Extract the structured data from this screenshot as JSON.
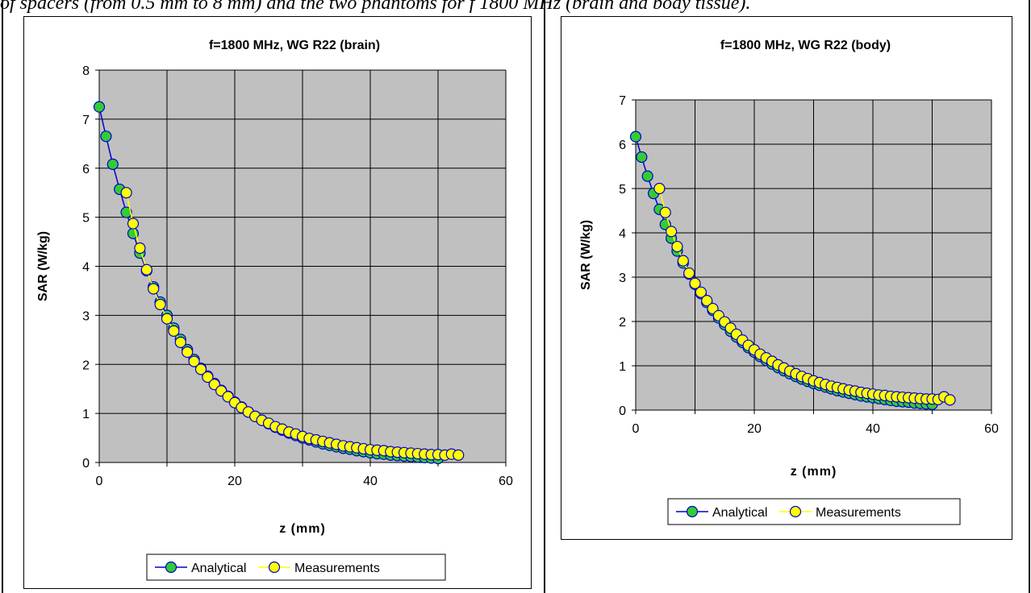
{
  "caption": "of spacers (from 0.5 mm to 8 mm) and the two phantoms for f 1800 MHz (brain and body tissue).",
  "chart_data": [
    {
      "type": "scatter",
      "title": "f=1800 MHz, WG R22 (brain)",
      "xlabel": "z (mm)",
      "ylabel": "SAR (W/kg)",
      "xlim": [
        0,
        60
      ],
      "ylim": [
        0,
        8
      ],
      "xticks": [
        0,
        20,
        40,
        60
      ],
      "yticks": [
        0,
        1,
        2,
        3,
        4,
        5,
        6,
        7,
        8
      ],
      "grid": true,
      "legend": "bottom",
      "plot_background": "#c0c0c0",
      "series": [
        {
          "name": "Analytical",
          "line_color": "#0000cc",
          "marker_color": "#33cc33",
          "x": [
            0,
            1,
            2,
            3,
            4,
            5,
            6,
            7,
            8,
            9,
            10,
            11,
            12,
            13,
            14,
            15,
            16,
            17,
            18,
            19,
            20,
            21,
            22,
            23,
            24,
            25,
            26,
            27,
            28,
            29,
            30,
            31,
            32,
            33,
            34,
            35,
            36,
            37,
            38,
            39,
            40,
            41,
            42,
            43,
            44,
            45,
            46,
            47,
            48,
            49,
            50
          ],
          "y": [
            7.25,
            6.65,
            6.08,
            5.57,
            5.1,
            4.67,
            4.27,
            3.91,
            3.58,
            3.27,
            3.0,
            2.74,
            2.51,
            2.3,
            2.1,
            1.92,
            1.76,
            1.61,
            1.47,
            1.35,
            1.23,
            1.13,
            1.03,
            0.94,
            0.86,
            0.79,
            0.72,
            0.66,
            0.6,
            0.55,
            0.5,
            0.46,
            0.42,
            0.38,
            0.35,
            0.32,
            0.29,
            0.27,
            0.24,
            0.22,
            0.2,
            0.18,
            0.17,
            0.15,
            0.14,
            0.13,
            0.12,
            0.11,
            0.1,
            0.09,
            0.08
          ]
        },
        {
          "name": "Measurements",
          "line_color": "#ffff00",
          "marker_color": "#ffff00",
          "x": [
            4,
            5,
            6,
            7,
            8,
            9,
            10,
            11,
            12,
            13,
            14,
            15,
            16,
            17,
            18,
            19,
            20,
            21,
            22,
            23,
            24,
            25,
            26,
            27,
            28,
            29,
            30,
            31,
            32,
            33,
            34,
            35,
            36,
            37,
            38,
            39,
            40,
            41,
            42,
            43,
            44,
            45,
            46,
            47,
            48,
            49,
            50,
            51,
            52,
            53
          ],
          "y": [
            5.5,
            4.87,
            4.37,
            3.93,
            3.54,
            3.22,
            2.93,
            2.68,
            2.45,
            2.25,
            2.06,
            1.9,
            1.74,
            1.59,
            1.46,
            1.34,
            1.22,
            1.12,
            1.03,
            0.94,
            0.86,
            0.8,
            0.73,
            0.68,
            0.62,
            0.58,
            0.53,
            0.49,
            0.46,
            0.43,
            0.4,
            0.37,
            0.34,
            0.32,
            0.3,
            0.28,
            0.26,
            0.25,
            0.24,
            0.22,
            0.21,
            0.2,
            0.19,
            0.18,
            0.17,
            0.16,
            0.16,
            0.15,
            0.17,
            0.15
          ]
        }
      ]
    },
    {
      "type": "scatter",
      "title": "f=1800 MHz, WG R22 (body)",
      "xlabel": "z (mm)",
      "ylabel": "SAR (W/kg)",
      "xlim": [
        0,
        60
      ],
      "ylim": [
        0,
        7
      ],
      "xticks": [
        0,
        20,
        40,
        60
      ],
      "yticks": [
        0,
        1,
        2,
        3,
        4,
        5,
        6,
        7
      ],
      "grid": true,
      "legend": "bottom",
      "plot_background": "#c0c0c0",
      "series": [
        {
          "name": "Analytical",
          "line_color": "#0000cc",
          "marker_color": "#33cc33",
          "x": [
            0,
            1,
            2,
            3,
            4,
            5,
            6,
            7,
            8,
            9,
            10,
            11,
            12,
            13,
            14,
            15,
            16,
            17,
            18,
            19,
            20,
            21,
            22,
            23,
            24,
            25,
            26,
            27,
            28,
            29,
            30,
            31,
            32,
            33,
            34,
            35,
            36,
            37,
            38,
            39,
            40,
            41,
            42,
            43,
            44,
            45,
            46,
            47,
            48,
            49,
            50
          ],
          "y": [
            6.17,
            5.71,
            5.28,
            4.89,
            4.53,
            4.19,
            3.88,
            3.59,
            3.32,
            3.07,
            2.84,
            2.63,
            2.43,
            2.25,
            2.08,
            1.93,
            1.78,
            1.65,
            1.53,
            1.41,
            1.31,
            1.21,
            1.12,
            1.04,
            0.96,
            0.89,
            0.82,
            0.76,
            0.7,
            0.65,
            0.6,
            0.56,
            0.52,
            0.48,
            0.44,
            0.41,
            0.38,
            0.35,
            0.32,
            0.3,
            0.28,
            0.26,
            0.24,
            0.22,
            0.2,
            0.19,
            0.18,
            0.16,
            0.15,
            0.14,
            0.13
          ]
        },
        {
          "name": "Measurements",
          "line_color": "#ffff00",
          "marker_color": "#ffff00",
          "x": [
            4,
            5,
            6,
            7,
            8,
            9,
            10,
            11,
            12,
            13,
            14,
            15,
            16,
            17,
            18,
            19,
            20,
            21,
            22,
            23,
            24,
            25,
            26,
            27,
            28,
            29,
            30,
            31,
            32,
            33,
            34,
            35,
            36,
            37,
            38,
            39,
            40,
            41,
            42,
            43,
            44,
            45,
            46,
            47,
            48,
            49,
            50,
            51,
            52,
            53
          ],
          "y": [
            5.0,
            4.46,
            4.03,
            3.69,
            3.37,
            3.09,
            2.86,
            2.66,
            2.47,
            2.29,
            2.13,
            1.99,
            1.85,
            1.71,
            1.58,
            1.46,
            1.36,
            1.26,
            1.18,
            1.1,
            1.02,
            0.95,
            0.88,
            0.82,
            0.76,
            0.71,
            0.66,
            0.62,
            0.58,
            0.54,
            0.51,
            0.48,
            0.45,
            0.43,
            0.4,
            0.38,
            0.36,
            0.34,
            0.33,
            0.31,
            0.3,
            0.29,
            0.28,
            0.27,
            0.26,
            0.25,
            0.25,
            0.24,
            0.3,
            0.23
          ]
        }
      ]
    }
  ]
}
